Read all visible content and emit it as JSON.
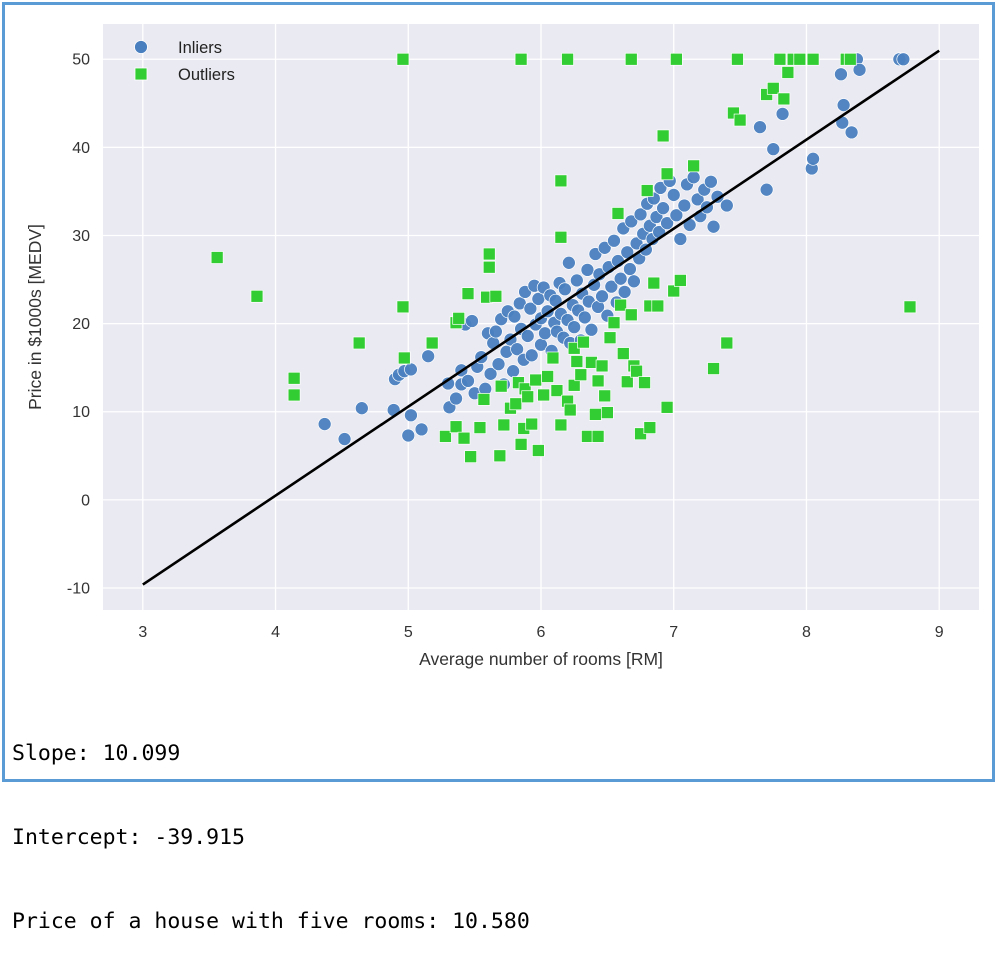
{
  "chart_data": {
    "type": "scatter",
    "title": "",
    "xlabel": "Average number of rooms [RM]",
    "ylabel": "Price in $1000s [MEDV]",
    "xlim": [
      2.7,
      9.3
    ],
    "ylim": [
      -12.5,
      54
    ],
    "xticks": [
      3,
      4,
      5,
      6,
      7,
      8,
      9
    ],
    "yticks": [
      -10,
      0,
      10,
      20,
      30,
      40,
      50
    ],
    "grid": true,
    "legend_position": "top-left",
    "style": {
      "background": "#eaeaf2",
      "grid_color": "#ffffff",
      "inlier_color": "#4a7fbf",
      "outlier_color": "#32cd32",
      "line_color": "#000000"
    },
    "series": [
      {
        "name": "Inliers",
        "marker": "circle",
        "color": "#4a7fbf",
        "points": [
          [
            4.37,
            8.6
          ],
          [
            4.52,
            6.9
          ],
          [
            4.65,
            10.4
          ],
          [
            4.89,
            10.2
          ],
          [
            4.9,
            13.7
          ],
          [
            4.93,
            14.2
          ],
          [
            4.97,
            14.6
          ],
          [
            5.0,
            7.3
          ],
          [
            5.02,
            9.6
          ],
          [
            5.02,
            14.8
          ],
          [
            5.1,
            8.0
          ],
          [
            5.15,
            16.3
          ],
          [
            5.3,
            13.2
          ],
          [
            5.31,
            10.5
          ],
          [
            5.36,
            11.5
          ],
          [
            5.4,
            13.1
          ],
          [
            5.4,
            14.7
          ],
          [
            5.43,
            19.9
          ],
          [
            5.45,
            13.5
          ],
          [
            5.48,
            20.3
          ],
          [
            5.5,
            12.1
          ],
          [
            5.52,
            15.1
          ],
          [
            5.55,
            16.2
          ],
          [
            5.58,
            12.6
          ],
          [
            5.6,
            18.9
          ],
          [
            5.62,
            14.3
          ],
          [
            5.64,
            17.8
          ],
          [
            5.66,
            19.1
          ],
          [
            5.68,
            15.4
          ],
          [
            5.7,
            20.5
          ],
          [
            5.72,
            13.1
          ],
          [
            5.74,
            16.8
          ],
          [
            5.75,
            21.4
          ],
          [
            5.77,
            18.2
          ],
          [
            5.79,
            14.6
          ],
          [
            5.8,
            20.8
          ],
          [
            5.82,
            17.1
          ],
          [
            5.84,
            22.3
          ],
          [
            5.85,
            19.4
          ],
          [
            5.87,
            15.9
          ],
          [
            5.88,
            23.6
          ],
          [
            5.9,
            18.6
          ],
          [
            5.92,
            21.7
          ],
          [
            5.93,
            16.4
          ],
          [
            5.95,
            24.3
          ],
          [
            5.96,
            19.9
          ],
          [
            5.98,
            22.8
          ],
          [
            6.0,
            17.6
          ],
          [
            6.0,
            20.6
          ],
          [
            6.02,
            24.1
          ],
          [
            6.03,
            18.9
          ],
          [
            6.05,
            21.4
          ],
          [
            6.07,
            23.2
          ],
          [
            6.08,
            16.9
          ],
          [
            6.1,
            20.1
          ],
          [
            6.11,
            22.6
          ],
          [
            6.12,
            19.1
          ],
          [
            6.14,
            24.6
          ],
          [
            6.15,
            21.1
          ],
          [
            6.17,
            18.4
          ],
          [
            6.18,
            23.9
          ],
          [
            6.2,
            20.4
          ],
          [
            6.21,
            26.9
          ],
          [
            6.22,
            17.8
          ],
          [
            6.24,
            22.1
          ],
          [
            6.25,
            19.6
          ],
          [
            6.27,
            24.9
          ],
          [
            6.28,
            21.5
          ],
          [
            6.3,
            18.1
          ],
          [
            6.31,
            23.4
          ],
          [
            6.33,
            20.7
          ],
          [
            6.35,
            26.1
          ],
          [
            6.36,
            22.5
          ],
          [
            6.38,
            19.3
          ],
          [
            6.4,
            24.4
          ],
          [
            6.41,
            27.9
          ],
          [
            6.43,
            21.9
          ],
          [
            6.44,
            25.6
          ],
          [
            6.46,
            23.1
          ],
          [
            6.48,
            28.6
          ],
          [
            6.5,
            20.9
          ],
          [
            6.51,
            26.4
          ],
          [
            6.53,
            24.2
          ],
          [
            6.55,
            29.4
          ],
          [
            6.57,
            22.4
          ],
          [
            6.58,
            27.1
          ],
          [
            6.6,
            25.1
          ],
          [
            6.62,
            30.8
          ],
          [
            6.63,
            23.6
          ],
          [
            6.65,
            28.1
          ],
          [
            6.67,
            26.2
          ],
          [
            6.68,
            31.6
          ],
          [
            6.7,
            24.8
          ],
          [
            6.72,
            29.1
          ],
          [
            6.74,
            27.4
          ],
          [
            6.75,
            32.4
          ],
          [
            6.77,
            30.2
          ],
          [
            6.79,
            28.4
          ],
          [
            6.8,
            33.6
          ],
          [
            6.82,
            31.1
          ],
          [
            6.84,
            29.6
          ],
          [
            6.85,
            34.2
          ],
          [
            6.87,
            32.1
          ],
          [
            6.89,
            30.4
          ],
          [
            6.9,
            35.4
          ],
          [
            6.92,
            33.1
          ],
          [
            6.95,
            31.4
          ],
          [
            6.97,
            36.2
          ],
          [
            7.0,
            34.6
          ],
          [
            7.02,
            32.3
          ],
          [
            7.05,
            29.6
          ],
          [
            7.08,
            33.4
          ],
          [
            7.1,
            35.8
          ],
          [
            7.12,
            31.2
          ],
          [
            7.15,
            36.6
          ],
          [
            7.18,
            34.1
          ],
          [
            7.2,
            32.2
          ],
          [
            7.23,
            35.2
          ],
          [
            7.25,
            33.2
          ],
          [
            7.28,
            36.1
          ],
          [
            7.3,
            31.0
          ],
          [
            7.33,
            34.4
          ],
          [
            7.4,
            33.4
          ],
          [
            7.65,
            42.3
          ],
          [
            7.7,
            35.2
          ],
          [
            7.75,
            39.8
          ],
          [
            7.82,
            43.8
          ],
          [
            8.04,
            37.6
          ],
          [
            8.05,
            38.7
          ],
          [
            8.26,
            48.3
          ],
          [
            8.27,
            42.8
          ],
          [
            8.28,
            44.8
          ],
          [
            8.34,
            41.7
          ],
          [
            8.38,
            50.0
          ],
          [
            8.4,
            48.8
          ],
          [
            8.7,
            50.0
          ],
          [
            8.73,
            50.0
          ]
        ]
      },
      {
        "name": "Outliers",
        "marker": "square",
        "color": "#32cd32",
        "points": [
          [
            3.56,
            27.5
          ],
          [
            3.86,
            23.1
          ],
          [
            4.14,
            13.8
          ],
          [
            4.14,
            11.9
          ],
          [
            4.63,
            17.8
          ],
          [
            4.96,
            50.0
          ],
          [
            4.96,
            21.9
          ],
          [
            4.97,
            16.1
          ],
          [
            5.18,
            17.8
          ],
          [
            5.28,
            7.2
          ],
          [
            5.36,
            8.3
          ],
          [
            5.36,
            20.1
          ],
          [
            5.38,
            20.6
          ],
          [
            5.42,
            7.0
          ],
          [
            5.45,
            23.4
          ],
          [
            5.47,
            4.9
          ],
          [
            5.54,
            8.2
          ],
          [
            5.57,
            11.4
          ],
          [
            5.59,
            23.0
          ],
          [
            5.61,
            27.9
          ],
          [
            5.61,
            26.4
          ],
          [
            5.66,
            23.1
          ],
          [
            5.69,
            5.0
          ],
          [
            5.7,
            12.9
          ],
          [
            5.72,
            8.5
          ],
          [
            5.77,
            10.4
          ],
          [
            5.81,
            10.9
          ],
          [
            5.83,
            13.3
          ],
          [
            5.85,
            50.0
          ],
          [
            5.85,
            6.3
          ],
          [
            5.87,
            8.1
          ],
          [
            5.88,
            12.6
          ],
          [
            5.9,
            11.7
          ],
          [
            5.93,
            8.6
          ],
          [
            5.96,
            13.6
          ],
          [
            5.98,
            5.6
          ],
          [
            6.02,
            11.9
          ],
          [
            6.05,
            14.0
          ],
          [
            6.09,
            16.1
          ],
          [
            6.12,
            12.4
          ],
          [
            6.15,
            36.2
          ],
          [
            6.15,
            29.8
          ],
          [
            6.15,
            8.5
          ],
          [
            6.2,
            50.0
          ],
          [
            6.2,
            11.2
          ],
          [
            6.22,
            10.2
          ],
          [
            6.25,
            17.2
          ],
          [
            6.25,
            13.0
          ],
          [
            6.27,
            15.7
          ],
          [
            6.3,
            14.2
          ],
          [
            6.32,
            17.9
          ],
          [
            6.35,
            7.2
          ],
          [
            6.38,
            15.6
          ],
          [
            6.41,
            9.7
          ],
          [
            6.43,
            13.5
          ],
          [
            6.43,
            7.2
          ],
          [
            6.46,
            15.2
          ],
          [
            6.48,
            11.8
          ],
          [
            6.5,
            9.9
          ],
          [
            6.52,
            18.4
          ],
          [
            6.55,
            20.1
          ],
          [
            6.58,
            32.5
          ],
          [
            6.6,
            22.1
          ],
          [
            6.62,
            16.6
          ],
          [
            6.65,
            13.4
          ],
          [
            6.68,
            50.0
          ],
          [
            6.68,
            21.0
          ],
          [
            6.7,
            15.2
          ],
          [
            6.72,
            14.6
          ],
          [
            6.75,
            7.5
          ],
          [
            6.78,
            13.3
          ],
          [
            6.8,
            35.1
          ],
          [
            6.82,
            22.0
          ],
          [
            6.82,
            8.2
          ],
          [
            6.85,
            24.6
          ],
          [
            6.88,
            22.0
          ],
          [
            6.92,
            41.3
          ],
          [
            6.95,
            37.0
          ],
          [
            6.95,
            10.5
          ],
          [
            7.0,
            23.7
          ],
          [
            7.02,
            50.0
          ],
          [
            7.05,
            24.9
          ],
          [
            7.15,
            37.9
          ],
          [
            7.3,
            14.9
          ],
          [
            7.4,
            17.8
          ],
          [
            7.45,
            43.9
          ],
          [
            7.48,
            50.0
          ],
          [
            7.5,
            43.1
          ],
          [
            7.7,
            46.0
          ],
          [
            7.75,
            46.7
          ],
          [
            7.8,
            50.0
          ],
          [
            7.83,
            45.5
          ],
          [
            7.86,
            48.5
          ],
          [
            7.9,
            50.0
          ],
          [
            7.95,
            50.0
          ],
          [
            8.05,
            50.0
          ],
          [
            8.3,
            50.0
          ],
          [
            8.33,
            50.0
          ],
          [
            8.78,
            21.9
          ]
        ]
      }
    ],
    "regression_line": {
      "slope": 10.099,
      "intercept": -39.915,
      "x_range": [
        3,
        9
      ]
    }
  },
  "output": {
    "slope_text": "Slope: 10.099",
    "intercept_text": "Intercept: -39.915",
    "prediction_text": "Price of a house with five rooms: 10.580"
  }
}
